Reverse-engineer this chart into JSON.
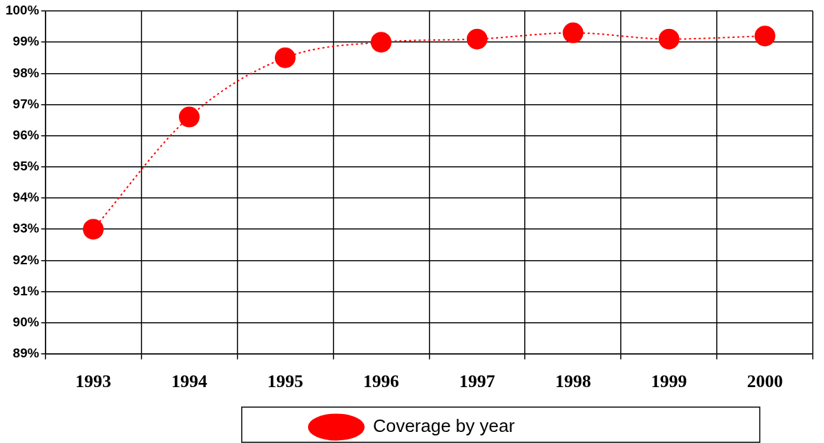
{
  "chart_data": {
    "type": "line",
    "categories": [
      "1993",
      "1994",
      "1995",
      "1996",
      "1997",
      "1998",
      "1999",
      "2000"
    ],
    "series": [
      {
        "name": "Coverage by year",
        "color": "#ff0000",
        "values": [
          93,
          96.6,
          98.5,
          99.0,
          99.1,
          99.3,
          99.1,
          99.2
        ]
      }
    ],
    "ylim": [
      89,
      100
    ],
    "yticks": [
      {
        "value": 89,
        "label": "89%"
      },
      {
        "value": 90,
        "label": "90%"
      },
      {
        "value": 91,
        "label": "91%"
      },
      {
        "value": 92,
        "label": "92%"
      },
      {
        "value": 93,
        "label": "93%"
      },
      {
        "value": 94,
        "label": "94%"
      },
      {
        "value": 95,
        "label": "95%"
      },
      {
        "value": 96,
        "label": "96%"
      },
      {
        "value": 97,
        "label": "97%"
      },
      {
        "value": 98,
        "label": "98%"
      },
      {
        "value": 99,
        "label": "99%"
      },
      {
        "value": 100,
        "label": "100%"
      }
    ],
    "grid": true,
    "legend": "bottom",
    "marker": "circle",
    "line_style": "dotted"
  }
}
